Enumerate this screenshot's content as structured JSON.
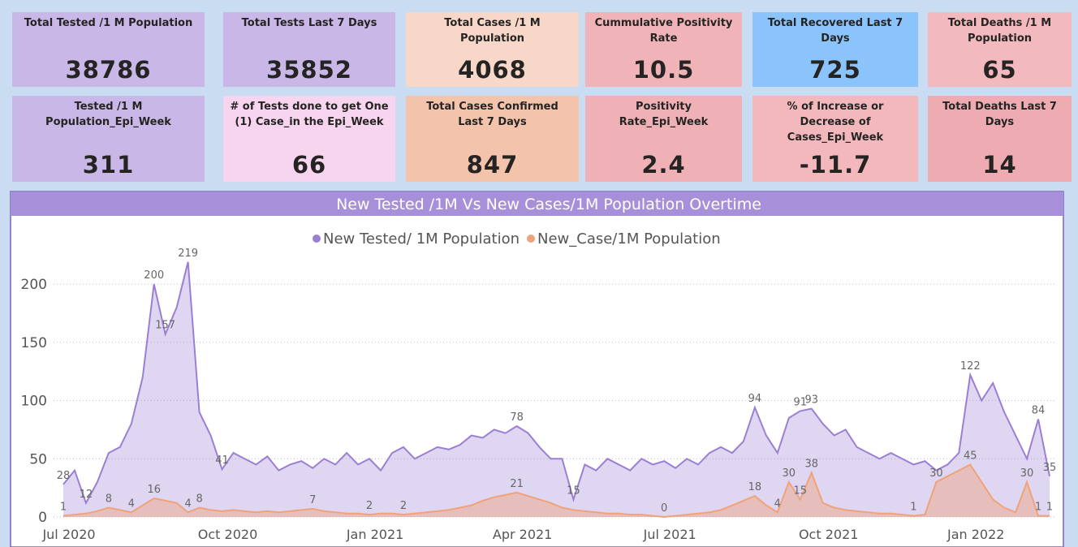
{
  "cards": [
    {
      "title": "Total Tested /1 M Population",
      "value": 38786
    },
    {
      "title": "Total Tests Last 7 Days",
      "value": 35852
    },
    {
      "title": "Total Cases /1 M Population",
      "value": 4068
    },
    {
      "title": "Cummulative Positivity Rate",
      "value": 10.5
    },
    {
      "title": "Total Recovered Last 7 Days",
      "value": 725
    },
    {
      "title": "Total Deaths /1 M Population",
      "value": 65
    },
    {
      "title": "Tested /1 M Population_Epi_Week",
      "value": 311
    },
    {
      "title": "# of Tests done to get One (1) Case_in the Epi_Week",
      "value": 66
    },
    {
      "title": "Total Cases Confirmed Last 7 Days",
      "value": 847
    },
    {
      "title": "Positivity Rate_Epi_Week",
      "value": 2.4
    },
    {
      "title": "% of Increase or Decrease of Cases_Epi_Week",
      "value": -11.7
    },
    {
      "title": "Total Deaths Last 7 Days",
      "value": 14
    }
  ],
  "chart_data": {
    "type": "area",
    "title": "New Tested /1M Vs New Cases/1M Population Overtime",
    "categories": [
      "Jul 2020",
      null,
      null,
      null,
      null,
      null,
      null,
      null,
      null,
      null,
      null,
      null,
      null,
      null,
      "Oct 2020",
      null,
      null,
      null,
      null,
      null,
      null,
      null,
      null,
      null,
      null,
      null,
      null,
      "Jan 2021",
      null,
      null,
      null,
      null,
      null,
      null,
      null,
      null,
      null,
      null,
      null,
      null,
      "Apr 2021",
      null,
      null,
      null,
      null,
      null,
      null,
      null,
      null,
      null,
      null,
      null,
      null,
      "Jul 2021",
      null,
      null,
      null,
      null,
      null,
      null,
      null,
      null,
      null,
      null,
      null,
      null,
      null,
      "Oct 2021",
      null,
      null,
      null,
      null,
      null,
      null,
      null,
      null,
      null,
      null,
      null,
      null,
      "Jan 2022",
      null,
      null,
      null,
      null,
      null,
      null,
      null
    ],
    "series": [
      {
        "name": "New Tested/ 1M Population",
        "color": "#9b7fd4",
        "values": [
          28,
          40,
          12,
          30,
          55,
          60,
          80,
          120,
          200,
          157,
          180,
          219,
          90,
          70,
          41,
          55,
          50,
          45,
          52,
          40,
          45,
          48,
          42,
          50,
          45,
          55,
          45,
          50,
          40,
          55,
          60,
          50,
          55,
          60,
          58,
          62,
          70,
          68,
          75,
          72,
          78,
          72,
          60,
          50,
          50,
          15,
          45,
          40,
          50,
          45,
          40,
          50,
          45,
          48,
          42,
          50,
          45,
          55,
          60,
          55,
          65,
          94,
          70,
          55,
          85,
          91,
          93,
          80,
          70,
          75,
          60,
          55,
          50,
          55,
          50,
          45,
          48,
          40,
          45,
          55,
          122,
          100,
          115,
          90,
          70,
          50,
          84,
          35
        ],
        "value_labels": [
          "28",
          null,
          "12",
          null,
          null,
          null,
          null,
          null,
          "200",
          "157",
          null,
          "219",
          null,
          null,
          "41",
          null,
          null,
          null,
          null,
          null,
          null,
          null,
          null,
          null,
          null,
          null,
          null,
          null,
          null,
          null,
          null,
          null,
          null,
          null,
          null,
          null,
          null,
          null,
          null,
          null,
          "78",
          null,
          null,
          null,
          null,
          "15",
          null,
          null,
          null,
          null,
          null,
          null,
          null,
          null,
          null,
          null,
          null,
          null,
          null,
          null,
          null,
          "94",
          null,
          null,
          null,
          "91",
          "93",
          null,
          null,
          null,
          null,
          null,
          null,
          null,
          null,
          null,
          null,
          null,
          null,
          null,
          "122",
          null,
          null,
          null,
          null,
          null,
          "84",
          "35"
        ]
      },
      {
        "name": "New_Case/1M Population",
        "color": "#f0a27a",
        "values": [
          1,
          2,
          3,
          5,
          8,
          6,
          4,
          10,
          16,
          14,
          12,
          4,
          8,
          6,
          5,
          6,
          5,
          4,
          5,
          4,
          5,
          6,
          7,
          5,
          4,
          3,
          3,
          2,
          3,
          3,
          2,
          3,
          4,
          5,
          6,
          8,
          10,
          14,
          17,
          19,
          21,
          18,
          15,
          12,
          8,
          6,
          5,
          4,
          3,
          3,
          2,
          2,
          1,
          0,
          1,
          2,
          3,
          4,
          6,
          10,
          14,
          18,
          10,
          4,
          30,
          15,
          38,
          12,
          8,
          6,
          5,
          4,
          3,
          3,
          2,
          1,
          2,
          30,
          35,
          40,
          45,
          30,
          15,
          8,
          4,
          30,
          1,
          1
        ],
        "value_labels": [
          "1",
          null,
          null,
          null,
          "8",
          null,
          "4",
          null,
          "16",
          null,
          null,
          "4",
          "8",
          null,
          null,
          null,
          null,
          null,
          null,
          null,
          null,
          null,
          "7",
          null,
          null,
          null,
          null,
          "2",
          null,
          null,
          "2",
          null,
          null,
          null,
          null,
          null,
          null,
          null,
          null,
          null,
          "21",
          null,
          null,
          null,
          null,
          null,
          null,
          null,
          null,
          null,
          null,
          null,
          null,
          "0",
          null,
          null,
          null,
          null,
          null,
          null,
          null,
          "18",
          null,
          "4",
          "30",
          "15",
          "38",
          null,
          null,
          null,
          null,
          null,
          null,
          null,
          null,
          "1",
          null,
          "30",
          null,
          null,
          "45",
          null,
          null,
          null,
          null,
          "30",
          "1",
          "1"
        ]
      }
    ],
    "ylim": [
      0,
      230
    ],
    "yticks": [
      0,
      50,
      100,
      150,
      200
    ],
    "grid": true,
    "legend": "top"
  }
}
